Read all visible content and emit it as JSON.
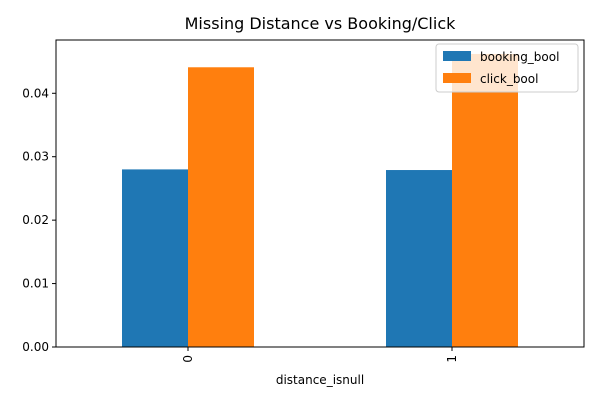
{
  "chart_data": {
    "type": "bar",
    "title": "Missing Distance vs Booking/Click",
    "xlabel": "distance_isnull",
    "ylabel": "",
    "categories": [
      "0",
      "1"
    ],
    "series": [
      {
        "name": "booking_bool",
        "color": "#1f77b4",
        "values": [
          0.028,
          0.0279
        ]
      },
      {
        "name": "click_bool",
        "color": "#ff7f0e",
        "values": [
          0.0441,
          0.0462
        ]
      }
    ],
    "ylim": [
      0,
      0.0484
    ],
    "yticks": [
      "0.00",
      "0.01",
      "0.02",
      "0.03",
      "0.04"
    ],
    "grid": false,
    "legend_position": "top-right"
  }
}
